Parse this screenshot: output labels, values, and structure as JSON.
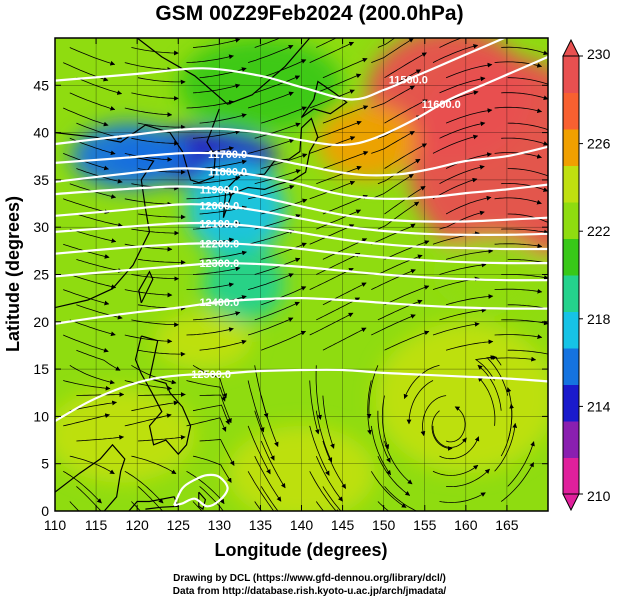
{
  "title": "GSM 00Z29Feb2024 (200.0hPa)",
  "chart_data": {
    "type": "map",
    "map_kind": "geopotential height contours + wind streamlines + temperature shading",
    "xlabel": "Longitude (degrees)",
    "ylabel": "Latitude (degrees)",
    "x_range": [
      110,
      170
    ],
    "y_range": [
      0,
      50
    ],
    "x_ticks": [
      110,
      115,
      120,
      125,
      130,
      135,
      140,
      145,
      150,
      155,
      160,
      165
    ],
    "y_ticks": [
      0,
      5,
      10,
      15,
      20,
      25,
      30,
      35,
      40,
      45
    ],
    "grid": true,
    "colorbar": {
      "min": 210,
      "max": 230,
      "tick_labels": [
        "230",
        "226",
        "222",
        "218",
        "214",
        "210"
      ],
      "tick_values": [
        230,
        226,
        222,
        218,
        214,
        210
      ],
      "colors": [
        "#e0209c",
        "#8a1fb0",
        "#1a1acc",
        "#1573e0",
        "#16c3e6",
        "#24d28c",
        "#38c818",
        "#8fdc10",
        "#c0e010",
        "#f0a000",
        "#f86030",
        "#e85050"
      ]
    },
    "contours": [
      {
        "label": "11500.0",
        "lon": [
          110,
          120,
          128,
          135,
          140,
          146,
          150,
          154,
          158,
          162,
          166,
          170
        ],
        "lat": [
          45.5,
          46.2,
          46.8,
          46.0,
          44.8,
          43.5,
          44.5,
          46.0,
          47.5,
          49.0,
          50.5,
          52.0
        ]
      },
      {
        "label": "11600.0",
        "lon": [
          110,
          118,
          125,
          130,
          135,
          140,
          144,
          147,
          150,
          154,
          158,
          162,
          166,
          170
        ],
        "lat": [
          38.8,
          39.6,
          40.3,
          40.4,
          40.0,
          39.2,
          38.7,
          38.9,
          39.8,
          41.5,
          43.5,
          45.0,
          46.5,
          48.0
        ]
      },
      {
        "label": "11700.0",
        "lon": [
          110,
          118,
          125,
          130,
          135,
          140,
          144,
          148,
          152,
          156,
          160,
          165,
          170
        ],
        "lat": [
          36.8,
          37.3,
          37.8,
          37.8,
          37.4,
          36.6,
          35.9,
          35.5,
          35.6,
          36.2,
          37.0,
          37.5,
          38.5
        ]
      },
      {
        "label": "11800.0",
        "lon": [
          110,
          118,
          125,
          130,
          135,
          140,
          144,
          148,
          152,
          156,
          160,
          165,
          170
        ],
        "lat": [
          34.8,
          35.6,
          36.2,
          36.0,
          35.4,
          34.5,
          33.6,
          33.1,
          33.0,
          33.2,
          33.6,
          34.0,
          34.5
        ]
      },
      {
        "label": "11900.0",
        "lon": [
          110,
          118,
          125,
          130,
          135,
          140,
          145,
          150,
          155,
          160,
          165,
          170
        ],
        "lat": [
          33.5,
          34.0,
          34.3,
          34.0,
          33.2,
          32.2,
          31.3,
          30.8,
          30.6,
          30.6,
          30.8,
          31.0
        ]
      },
      {
        "label": "12000.0",
        "lon": [
          110,
          118,
          125,
          130,
          135,
          140,
          145,
          150,
          155,
          160,
          165,
          170
        ],
        "lat": [
          31.2,
          31.8,
          32.4,
          32.3,
          31.7,
          30.9,
          30.1,
          29.6,
          29.3,
          29.2,
          29.2,
          29.3
        ]
      },
      {
        "label": "12100.0",
        "lon": [
          110,
          118,
          125,
          130,
          135,
          140,
          145,
          150,
          155,
          160,
          165,
          170
        ],
        "lat": [
          29.5,
          30.0,
          30.4,
          30.4,
          30.0,
          29.4,
          28.7,
          28.2,
          27.9,
          27.8,
          27.7,
          27.7
        ]
      },
      {
        "label": "12200.0",
        "lon": [
          110,
          118,
          125,
          130,
          135,
          140,
          145,
          150,
          155,
          160,
          165,
          170
        ],
        "lat": [
          27.2,
          27.8,
          28.2,
          28.3,
          28.1,
          27.7,
          27.2,
          26.8,
          26.5,
          26.3,
          26.2,
          26.2
        ]
      },
      {
        "label": "12300.0",
        "lon": [
          110,
          118,
          125,
          130,
          135,
          140,
          145,
          150,
          155,
          160,
          165,
          170
        ],
        "lat": [
          24.8,
          25.4,
          25.9,
          26.2,
          26.1,
          25.8,
          25.4,
          25.0,
          24.7,
          24.5,
          24.4,
          24.4
        ]
      },
      {
        "label": "12400.0",
        "lon": [
          110,
          118,
          125,
          130,
          135,
          140,
          145,
          150,
          155,
          160,
          165,
          170
        ],
        "lat": [
          19.8,
          20.8,
          21.5,
          22.1,
          22.4,
          22.5,
          22.3,
          22.0,
          21.7,
          21.5,
          21.4,
          21.4
        ]
      },
      {
        "label": "12500.0",
        "lon": [
          110,
          114,
          118,
          122,
          126,
          130,
          135,
          140,
          145,
          150,
          155,
          160,
          165,
          170
        ],
        "lat": [
          9.5,
          11.5,
          13.0,
          14.0,
          14.4,
          14.5,
          14.8,
          14.9,
          14.9,
          14.6,
          14.4,
          14.2,
          14.0,
          13.7
        ]
      },
      {
        "label": "",
        "lon": [
          124.5,
          125.5,
          127.0,
          128.5,
          130.0,
          131.0,
          130.0,
          128.5,
          127.0,
          125.5,
          124.5
        ],
        "lat": [
          0.6,
          2.4,
          3.3,
          3.8,
          3.6,
          2.4,
          1.1,
          0.5,
          1.3,
          0.8,
          0.6
        ]
      }
    ],
    "temperature_field": [
      {
        "lon": 165,
        "lat": 37,
        "value": 229,
        "rlon": 12,
        "rlat": 11
      },
      {
        "lon": 158,
        "lat": 44,
        "value": 228.5,
        "rlon": 10,
        "rlat": 7
      },
      {
        "lon": 148,
        "lat": 39,
        "value": 226,
        "rlon": 6,
        "rlat": 4
      },
      {
        "lon": 127,
        "lat": 37.5,
        "value": 213.5,
        "rlon": 10,
        "rlat": 3
      },
      {
        "lon": 119,
        "lat": 37.5,
        "value": 215,
        "rlon": 7,
        "rlat": 3.5
      },
      {
        "lon": 132,
        "lat": 32,
        "value": 217,
        "rlon": 6,
        "rlat": 5
      },
      {
        "lon": 133,
        "lat": 24,
        "value": 219,
        "rlon": 5,
        "rlat": 4
      },
      {
        "lon": 135,
        "lat": 45,
        "value": 220.5,
        "rlon": 10,
        "rlat": 5
      },
      {
        "lon": 118,
        "lat": 8,
        "value": 223.5,
        "rlon": 9,
        "rlat": 5
      },
      {
        "lon": 140,
        "lat": 4,
        "value": 224,
        "rlon": 9,
        "rlat": 5
      },
      {
        "lon": 160,
        "lat": 12,
        "value": 224,
        "rlon": 11,
        "rlat": 8
      },
      {
        "lon": 128,
        "lat": 18,
        "value": 223.5,
        "rlon": 6,
        "rlat": 3
      },
      {
        "lon": 163,
        "lat": 25,
        "value": 223,
        "rlon": 7,
        "rlat": 4
      }
    ],
    "background_temperature": 222.5
  },
  "credits": {
    "line1": "Drawing by DCL (https://www.gfd-dennou.org/library/dcl/)",
    "line2": "Data from http://database.rish.kyoto-u.ac.jp/arch/jmadata/"
  }
}
